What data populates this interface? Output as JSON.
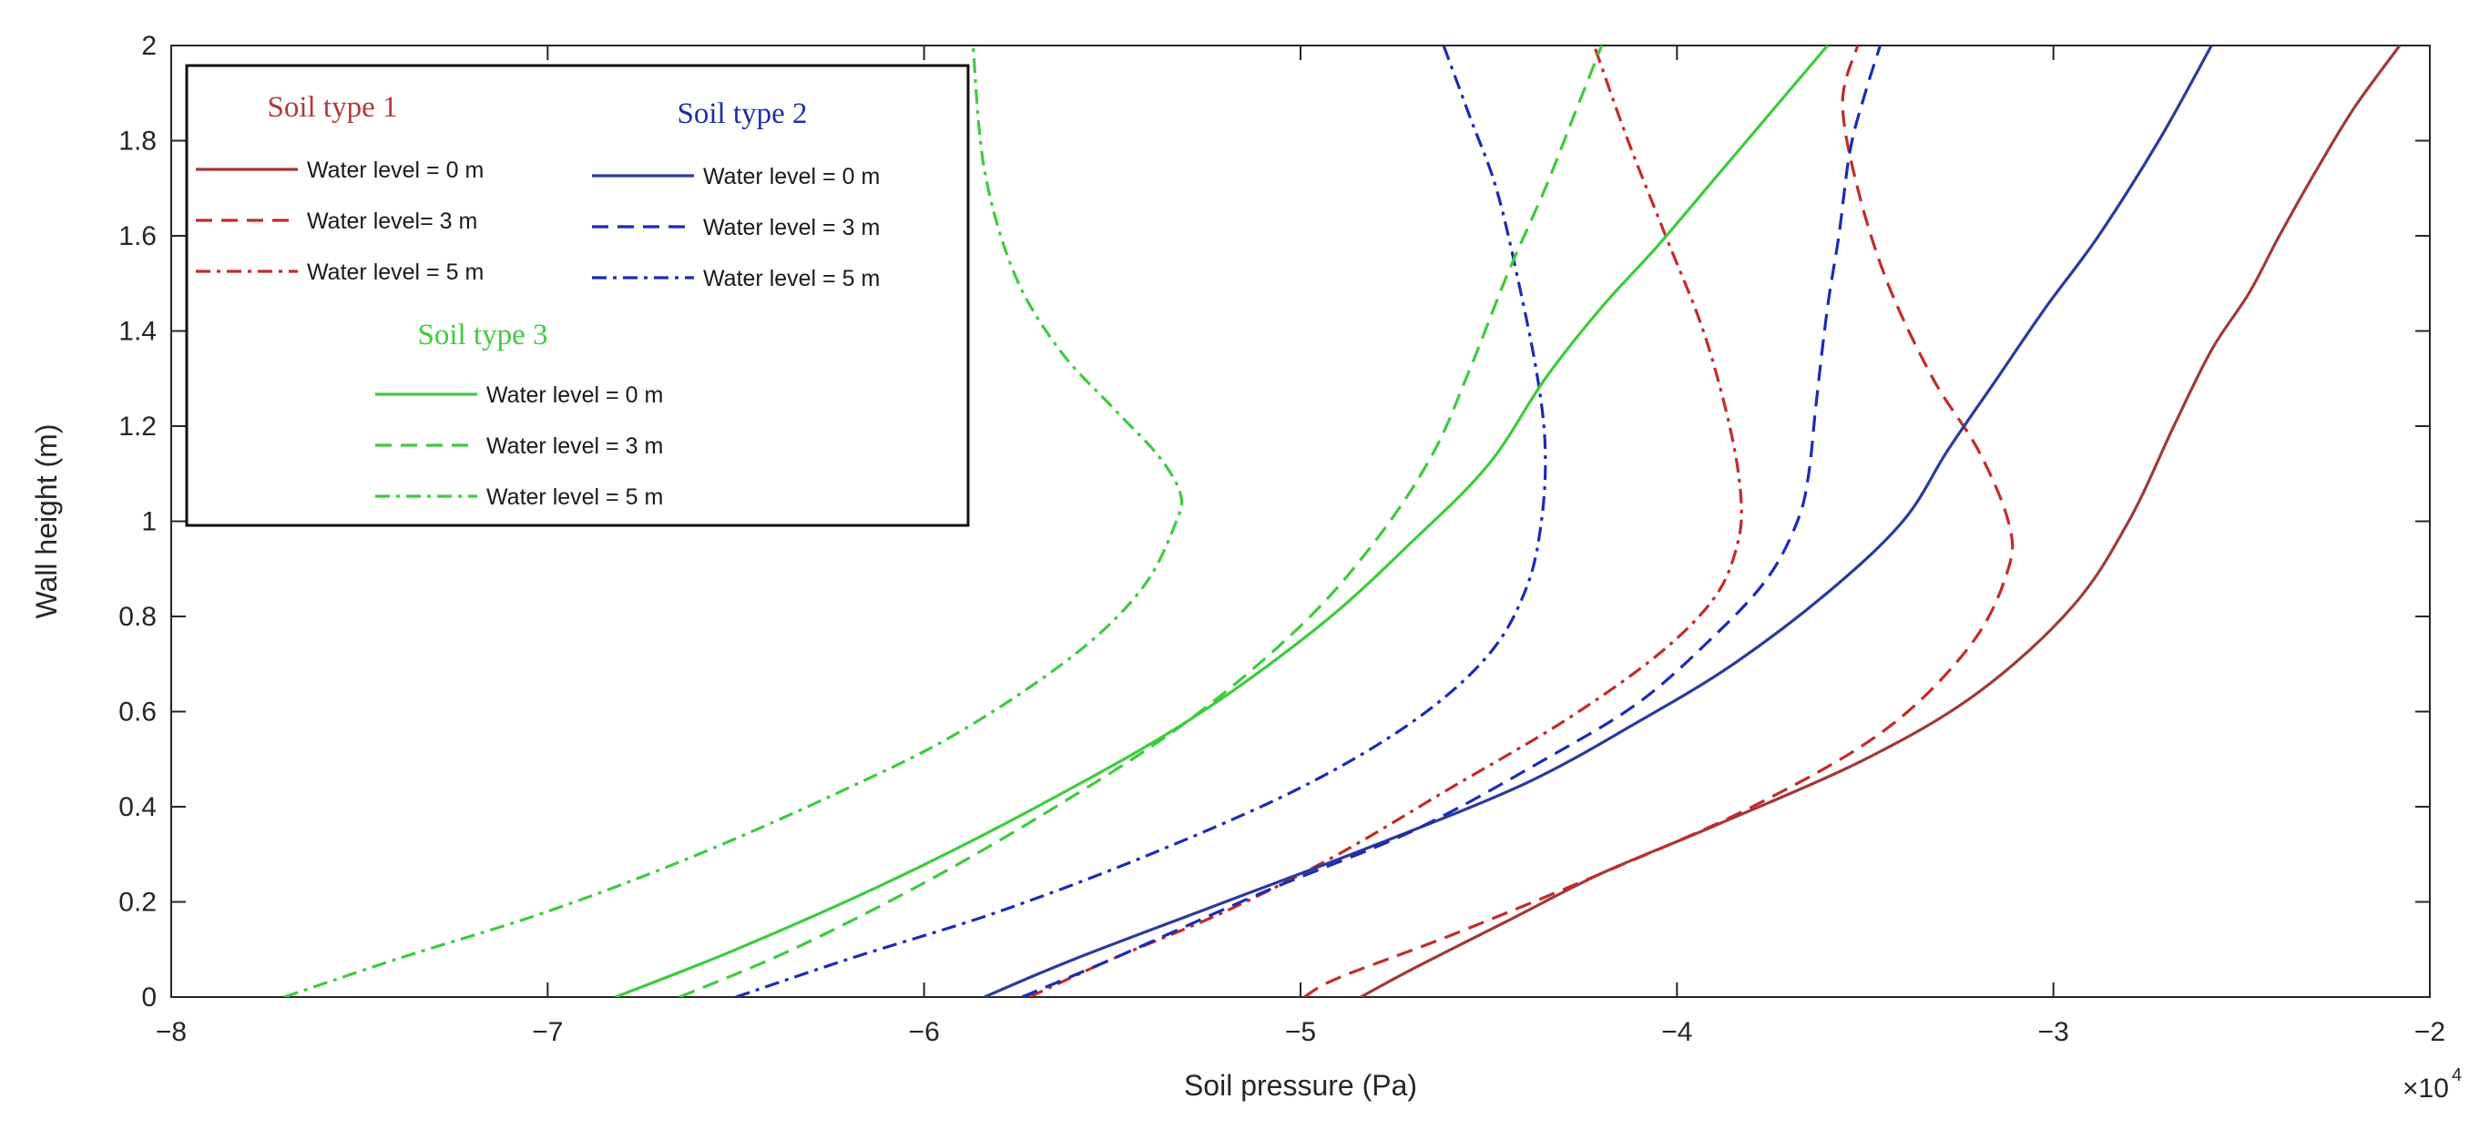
{
  "chart_data": {
    "type": "line",
    "title": "",
    "xlabel": "Soil pressure (Pa)",
    "ylabel": "Wall height (m)",
    "x_multiplier": "×10",
    "x_multiplier_exp": "4",
    "xlim": [
      -8,
      -2
    ],
    "ylim": [
      0,
      2
    ],
    "xticks": [
      -8,
      -7,
      -6,
      -5,
      -4,
      -3,
      -2
    ],
    "yticks": [
      0,
      0.2,
      0.4,
      0.6,
      0.8,
      1,
      1.2,
      1.4,
      1.6,
      1.8,
      2
    ],
    "xtick_labels": [
      "−8",
      "−7",
      "−6",
      "−5",
      "−4",
      "−3",
      "−2"
    ],
    "ytick_labels": [
      "0",
      "0.2",
      "0.4",
      "0.6",
      "0.8",
      "1",
      "1.2",
      "1.4",
      "1.6",
      "1.8",
      "2"
    ],
    "grid": false,
    "legend_position": "top-left",
    "groups": [
      {
        "title": "Soil type 1",
        "color": "#b03a3a"
      },
      {
        "title": "Soil type 2",
        "color": "#1f2ea8"
      },
      {
        "title": "Soil type 3",
        "color": "#3ccc3c"
      }
    ],
    "series": [
      {
        "name": "Water level = 0 m",
        "group": 0,
        "dash": "solid",
        "color": "#a0393a",
        "x": [
          -4.84,
          -4.7,
          -4.45,
          -4.2,
          -3.9,
          -3.5,
          -3.2,
          -2.95,
          -2.8,
          -2.68,
          -2.58,
          -2.48,
          -2.4,
          -2.3,
          -2.2,
          -2.08
        ],
        "y": [
          0,
          0.06,
          0.16,
          0.26,
          0.36,
          0.5,
          0.64,
          0.82,
          1.0,
          1.2,
          1.36,
          1.48,
          1.6,
          1.74,
          1.87,
          2.0
        ]
      },
      {
        "name": "Water level= 3 m",
        "group": 0,
        "dash": "dashed",
        "color": "#c42a2a",
        "x": [
          -4.99,
          -4.9,
          -4.6,
          -4.2,
          -3.8,
          -3.45,
          -3.22,
          -3.12,
          -3.12,
          -3.2,
          -3.32,
          -3.44,
          -3.52,
          -3.56,
          -3.52
        ],
        "y": [
          0,
          0.04,
          0.13,
          0.26,
          0.4,
          0.56,
          0.74,
          0.9,
          1.0,
          1.15,
          1.3,
          1.5,
          1.7,
          1.88,
          2.0
        ]
      },
      {
        "name": "Water level = 5 m",
        "group": 0,
        "dash": "dashdot",
        "color": "#c42a2a",
        "x": [
          -5.72,
          -5.5,
          -5.2,
          -4.9,
          -4.6,
          -4.3,
          -4.05,
          -3.9,
          -3.84,
          -3.83,
          -3.86,
          -3.93,
          -4.03,
          -4.13,
          -4.22
        ],
        "y": [
          0,
          0.08,
          0.18,
          0.3,
          0.44,
          0.58,
          0.72,
          0.84,
          0.95,
          1.05,
          1.2,
          1.4,
          1.6,
          1.8,
          2.0
        ]
      },
      {
        "name": "Water level = 0 m",
        "group": 1,
        "dash": "solid",
        "color": "#2a3a9c",
        "x": [
          -5.84,
          -5.6,
          -5.2,
          -4.8,
          -4.4,
          -4.1,
          -3.85,
          -3.6,
          -3.4,
          -3.28,
          -3.15,
          -3.02,
          -2.88,
          -2.72,
          -2.58
        ],
        "y": [
          0,
          0.08,
          0.2,
          0.32,
          0.45,
          0.58,
          0.7,
          0.85,
          1.0,
          1.15,
          1.3,
          1.45,
          1.6,
          1.8,
          2.0
        ]
      },
      {
        "name": "Water level = 3 m",
        "group": 1,
        "dash": "dashed",
        "color": "#1c2bb5",
        "x": [
          -5.74,
          -5.5,
          -5.1,
          -4.7,
          -4.35,
          -4.1,
          -3.9,
          -3.76,
          -3.68,
          -3.65,
          -3.63,
          -3.6,
          -3.57,
          -3.54,
          -3.5,
          -3.46
        ],
        "y": [
          0,
          0.08,
          0.22,
          0.35,
          0.5,
          0.62,
          0.76,
          0.88,
          1.0,
          1.1,
          1.25,
          1.45,
          1.6,
          1.78,
          1.9,
          2.0
        ]
      },
      {
        "name": "Water level = 5 m",
        "group": 1,
        "dash": "dashdot",
        "color": "#1c2bb5",
        "x": [
          -6.5,
          -6.2,
          -5.8,
          -5.4,
          -5.0,
          -4.7,
          -4.5,
          -4.4,
          -4.36,
          -4.35,
          -4.37,
          -4.42,
          -4.48,
          -4.55,
          -4.62
        ],
        "y": [
          0,
          0.08,
          0.18,
          0.3,
          0.44,
          0.58,
          0.72,
          0.86,
          1.0,
          1.15,
          1.3,
          1.5,
          1.7,
          1.85,
          2.0
        ]
      },
      {
        "name": "Water level = 0 m",
        "group": 2,
        "dash": "solid",
        "color": "#3ccc3c",
        "x": [
          -6.82,
          -6.5,
          -6.1,
          -5.7,
          -5.3,
          -4.95,
          -4.7,
          -4.5,
          -4.35,
          -4.2,
          -4.05,
          -3.9,
          -3.75,
          -3.6
        ],
        "y": [
          0,
          0.1,
          0.24,
          0.4,
          0.58,
          0.78,
          0.96,
          1.12,
          1.3,
          1.45,
          1.58,
          1.72,
          1.86,
          2.0
        ]
      },
      {
        "name": "Water level = 3 m",
        "group": 2,
        "dash": "dashed",
        "color": "#3ccc3c",
        "x": [
          -6.65,
          -6.35,
          -6.0,
          -5.65,
          -5.3,
          -5.0,
          -4.8,
          -4.65,
          -4.55,
          -4.45,
          -4.35,
          -4.27,
          -4.2
        ],
        "y": [
          0,
          0.1,
          0.24,
          0.4,
          0.58,
          0.78,
          0.96,
          1.14,
          1.32,
          1.52,
          1.7,
          1.86,
          2.0
        ]
      },
      {
        "name": "Water level = 5 m",
        "group": 2,
        "dash": "dashdot",
        "color": "#3ccc3c",
        "x": [
          -7.7,
          -7.4,
          -7.0,
          -6.6,
          -6.2,
          -5.9,
          -5.6,
          -5.42,
          -5.33,
          -5.32,
          -5.38,
          -5.5,
          -5.64,
          -5.76,
          -5.84,
          -5.87
        ],
        "y": [
          0,
          0.08,
          0.18,
          0.3,
          0.44,
          0.56,
          0.72,
          0.86,
          1.0,
          1.06,
          1.14,
          1.24,
          1.36,
          1.52,
          1.74,
          2.0
        ]
      }
    ]
  }
}
